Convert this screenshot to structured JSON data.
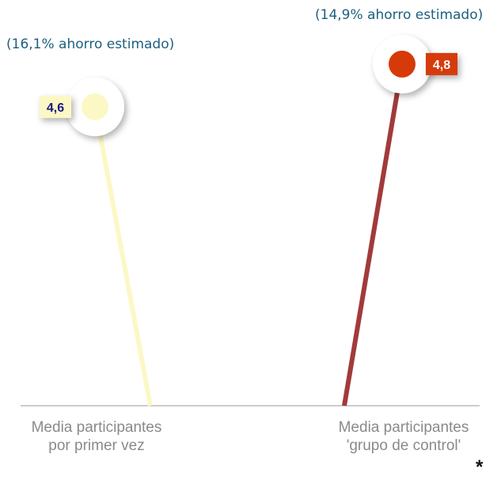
{
  "chart_data": {
    "type": "lollipop",
    "categories": [
      "Media participantes por primer vez",
      "Media participantes 'grupo de control'"
    ],
    "values": [
      4.6,
      4.8
    ],
    "value_labels": [
      "4,6",
      "4,8"
    ],
    "annotations": [
      "(16,1% ahorro estimado)",
      "(14,9% ahorro estimado)"
    ],
    "footnote_mark": "*",
    "colors": [
      "#fbf8c6",
      "#a23a3a"
    ],
    "head_colors": [
      "#fbf8c6",
      "#d63a08"
    ],
    "label_colors": [
      "#1a1a80",
      "#ffffff"
    ],
    "ylim": [
      3.2,
      5.0
    ]
  }
}
